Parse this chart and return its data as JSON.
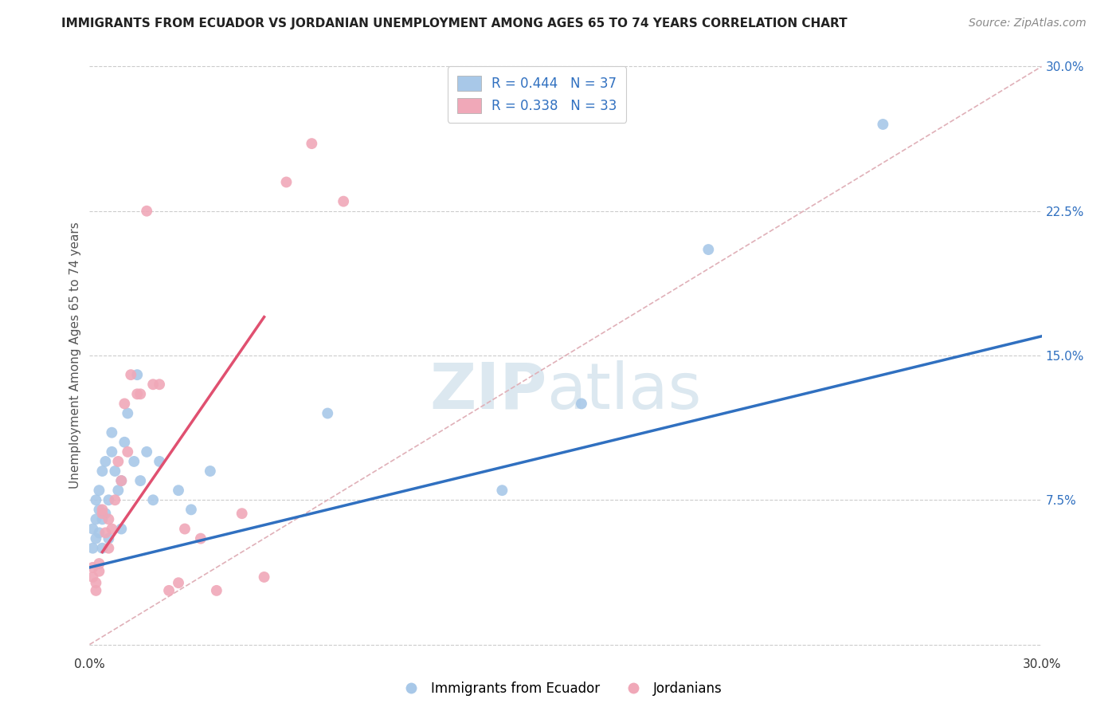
{
  "title": "IMMIGRANTS FROM ECUADOR VS JORDANIAN UNEMPLOYMENT AMONG AGES 65 TO 74 YEARS CORRELATION CHART",
  "source": "Source: ZipAtlas.com",
  "ylabel": "Unemployment Among Ages 65 to 74 years",
  "xlim": [
    0.0,
    0.3
  ],
  "ylim": [
    -0.005,
    0.305
  ],
  "ecuador_color": "#a8c8e8",
  "jordan_color": "#f0a8b8",
  "ecuador_R": 0.444,
  "ecuador_N": 37,
  "jordan_R": 0.338,
  "jordan_N": 33,
  "diagonal_color": "#e0b0b8",
  "watermark_color": "#dce8f0",
  "ecuador_line_color": "#3070c0",
  "jordan_line_color": "#e05070",
  "ecuador_line_x0": 0.0,
  "ecuador_line_y0": 0.04,
  "ecuador_line_x1": 0.3,
  "ecuador_line_y1": 0.16,
  "jordan_line_x0": 0.004,
  "jordan_line_y0": 0.048,
  "jordan_line_x1": 0.055,
  "jordan_line_y1": 0.17,
  "ecuador_scatter_x": [
    0.001,
    0.001,
    0.002,
    0.002,
    0.002,
    0.003,
    0.003,
    0.003,
    0.004,
    0.004,
    0.004,
    0.005,
    0.005,
    0.006,
    0.006,
    0.007,
    0.007,
    0.008,
    0.009,
    0.01,
    0.01,
    0.011,
    0.012,
    0.014,
    0.015,
    0.016,
    0.018,
    0.02,
    0.022,
    0.028,
    0.032,
    0.038,
    0.075,
    0.13,
    0.155,
    0.195,
    0.25
  ],
  "ecuador_scatter_y": [
    0.05,
    0.06,
    0.055,
    0.065,
    0.075,
    0.058,
    0.07,
    0.08,
    0.05,
    0.065,
    0.09,
    0.068,
    0.095,
    0.055,
    0.075,
    0.11,
    0.1,
    0.09,
    0.08,
    0.06,
    0.085,
    0.105,
    0.12,
    0.095,
    0.14,
    0.085,
    0.1,
    0.075,
    0.095,
    0.08,
    0.07,
    0.09,
    0.12,
    0.08,
    0.125,
    0.205,
    0.27
  ],
  "jordan_scatter_x": [
    0.001,
    0.001,
    0.002,
    0.002,
    0.003,
    0.003,
    0.004,
    0.004,
    0.005,
    0.006,
    0.006,
    0.007,
    0.008,
    0.009,
    0.01,
    0.011,
    0.012,
    0.013,
    0.015,
    0.016,
    0.018,
    0.02,
    0.022,
    0.025,
    0.028,
    0.03,
    0.035,
    0.04,
    0.048,
    0.055,
    0.062,
    0.07,
    0.08
  ],
  "jordan_scatter_y": [
    0.035,
    0.04,
    0.028,
    0.032,
    0.038,
    0.042,
    0.068,
    0.07,
    0.058,
    0.05,
    0.065,
    0.06,
    0.075,
    0.095,
    0.085,
    0.125,
    0.1,
    0.14,
    0.13,
    0.13,
    0.225,
    0.135,
    0.135,
    0.028,
    0.032,
    0.06,
    0.055,
    0.028,
    0.068,
    0.035,
    0.24,
    0.26,
    0.23
  ],
  "legend_label_ecuador": "Immigrants from Ecuador",
  "legend_label_jordan": "Jordanians",
  "grid_color": "#cccccc",
  "title_fontsize": 11,
  "source_fontsize": 10
}
